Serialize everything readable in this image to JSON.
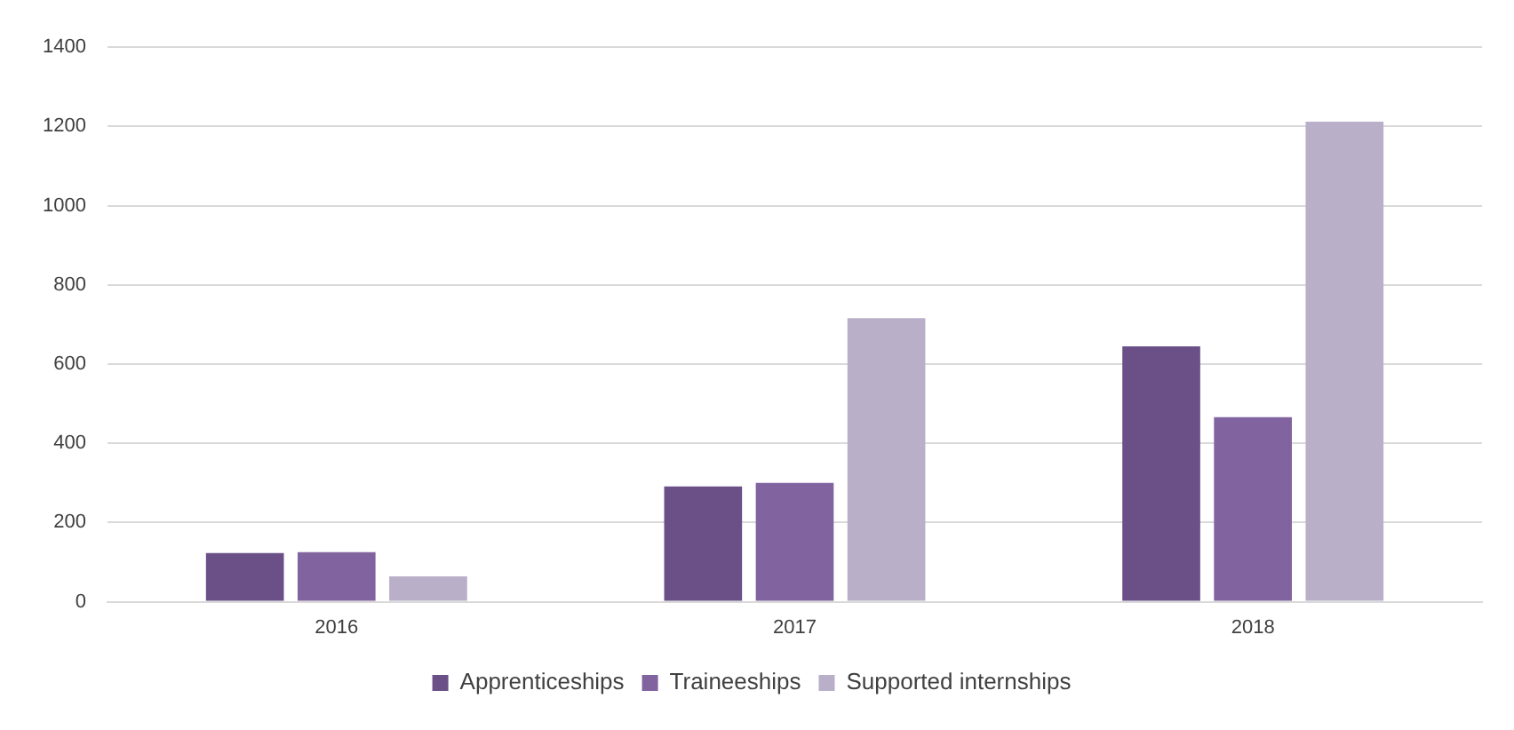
{
  "chart_data": {
    "type": "bar",
    "categories": [
      "2016",
      "2017",
      "2018"
    ],
    "series": [
      {
        "name": "Apprenticeships",
        "color": "#6a5087",
        "values": [
          123,
          291,
          645
        ]
      },
      {
        "name": "Traineeships",
        "color": "#8163a0",
        "values": [
          125,
          300,
          466
        ]
      },
      {
        "name": "Supported internships",
        "color": "#b9afc9",
        "values": [
          64,
          716,
          1212
        ]
      }
    ],
    "ylim": [
      0,
      1400
    ],
    "yticks": [
      0,
      200,
      400,
      600,
      800,
      1000,
      1200,
      1400
    ],
    "grid": "y",
    "legend": "bottom"
  }
}
